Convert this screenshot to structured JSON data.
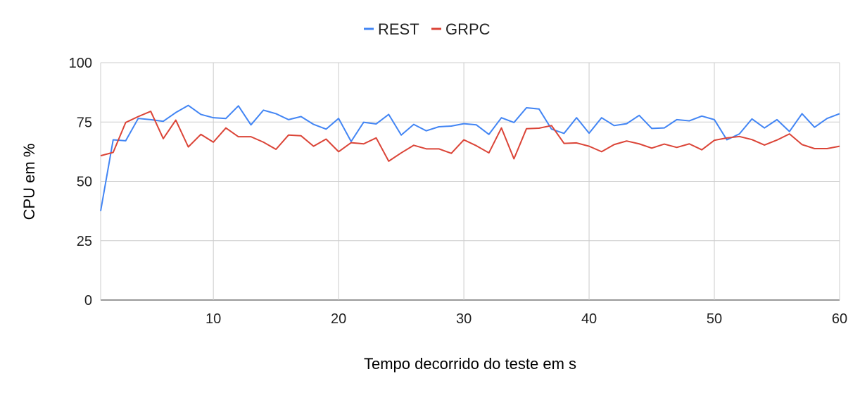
{
  "chart_data": {
    "type": "line",
    "xlabel": "Tempo decorrido do teste em s",
    "ylabel": "CPU em %",
    "xlim": [
      1,
      60
    ],
    "ylim": [
      0,
      100
    ],
    "x_ticks": [
      10,
      20,
      30,
      40,
      50,
      60
    ],
    "y_ticks": [
      0,
      25,
      50,
      75,
      100
    ],
    "grid": true,
    "legend_position": "top-center",
    "x": [
      1,
      2,
      3,
      4,
      5,
      6,
      7,
      8,
      9,
      10,
      11,
      12,
      13,
      14,
      15,
      16,
      17,
      18,
      19,
      20,
      21,
      22,
      23,
      24,
      25,
      26,
      27,
      28,
      29,
      30,
      31,
      32,
      33,
      34,
      35,
      36,
      37,
      38,
      39,
      40,
      41,
      42,
      43,
      44,
      45,
      46,
      47,
      48,
      49,
      50,
      51,
      52,
      53,
      54,
      55,
      56,
      57,
      58,
      59,
      60
    ],
    "series": [
      {
        "name": "REST",
        "color": "#4285f4",
        "values": [
          37.5,
          67.5,
          67.1,
          76.5,
          76.0,
          75.3,
          79.0,
          82.0,
          78.2,
          76.8,
          76.5,
          81.8,
          73.8,
          80.0,
          78.5,
          76.0,
          77.3,
          74.0,
          72.0,
          76.5,
          66.8,
          74.9,
          74.2,
          78.2,
          69.5,
          74.0,
          71.3,
          73.0,
          73.3,
          74.3,
          73.8,
          69.8,
          76.8,
          74.8,
          81.0,
          80.5,
          72.0,
          70.2,
          76.8,
          70.3,
          76.8,
          73.5,
          74.3,
          77.8,
          72.3,
          72.5,
          76.0,
          75.5,
          77.5,
          76.0,
          67.5,
          70.0,
          76.3,
          72.5,
          76.0,
          71.0,
          78.5,
          72.8,
          76.5,
          78.5
        ]
      },
      {
        "name": "GRPC",
        "color": "#db4437",
        "values": [
          60.8,
          62.2,
          74.8,
          77.3,
          79.5,
          68.0,
          75.8,
          64.5,
          69.8,
          66.5,
          72.5,
          68.8,
          68.8,
          66.5,
          63.5,
          69.5,
          69.2,
          64.8,
          67.8,
          62.5,
          66.3,
          65.8,
          68.3,
          58.5,
          62.0,
          65.2,
          63.7,
          63.7,
          61.8,
          67.5,
          65.0,
          62.0,
          72.5,
          59.5,
          72.2,
          72.4,
          73.5,
          66.0,
          66.2,
          64.8,
          62.5,
          65.5,
          67.0,
          65.8,
          64.0,
          65.7,
          64.3,
          65.8,
          63.3,
          67.3,
          68.3,
          68.9,
          67.6,
          65.3,
          67.4,
          70.0,
          65.5,
          63.8,
          63.8,
          64.8
        ]
      }
    ]
  }
}
